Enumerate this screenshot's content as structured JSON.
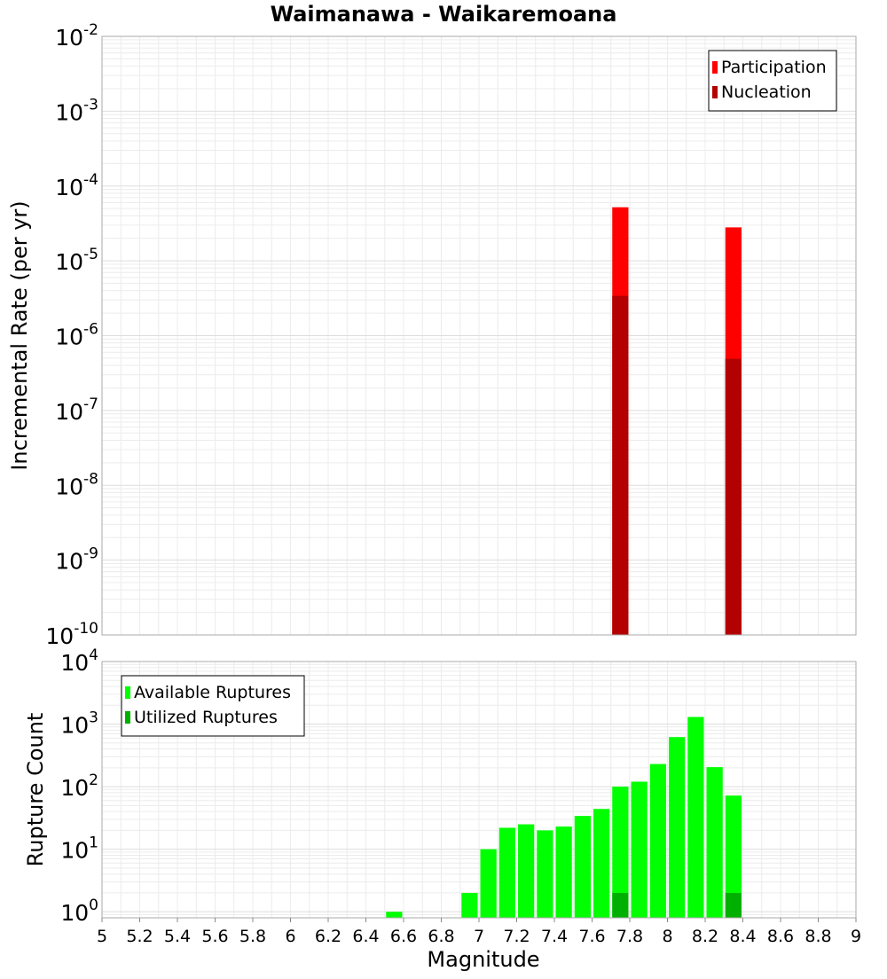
{
  "chart_data": [
    {
      "type": "bar",
      "title": "Waimanawa - Waikaremoana",
      "xlabel": "",
      "ylabel": "Incremental Rate (per yr)",
      "yscale": "log",
      "ylim": [
        1e-10,
        0.01
      ],
      "xlim": [
        5,
        9
      ],
      "y_ticks": [
        {
          "base": "10",
          "exp": "-10"
        },
        {
          "base": "10",
          "exp": "-9"
        },
        {
          "base": "10",
          "exp": "-8"
        },
        {
          "base": "10",
          "exp": "-7"
        },
        {
          "base": "10",
          "exp": "-6"
        },
        {
          "base": "10",
          "exp": "-5"
        },
        {
          "base": "10",
          "exp": "-4"
        },
        {
          "base": "10",
          "exp": "-3"
        },
        {
          "base": "10",
          "exp": "-2"
        }
      ],
      "grid": true,
      "legend_position": "top-right",
      "series": [
        {
          "name": "Participation",
          "color": "#ff0000",
          "x": [
            7.75,
            8.35
          ],
          "values": [
            5.2e-05,
            2.8e-05
          ]
        },
        {
          "name": "Nucleation",
          "color": "#b30000",
          "x": [
            7.75,
            8.35
          ],
          "values": [
            3.4e-06,
            4.9e-07
          ]
        }
      ]
    },
    {
      "type": "bar",
      "title": "",
      "xlabel": "Magnitude",
      "ylabel": "Rupture Count",
      "yscale": "log",
      "ylim": [
        0.8,
        10000
      ],
      "xlim": [
        5,
        9
      ],
      "y_ticks": [
        {
          "base": "10",
          "exp": "0"
        },
        {
          "base": "10",
          "exp": "1"
        },
        {
          "base": "10",
          "exp": "2"
        },
        {
          "base": "10",
          "exp": "3"
        },
        {
          "base": "10",
          "exp": "4"
        }
      ],
      "x_ticks": [
        "5",
        "5.2",
        "5.4",
        "5.6",
        "5.8",
        "6",
        "6.2",
        "6.4",
        "6.6",
        "6.8",
        "7",
        "7.2",
        "7.4",
        "7.6",
        "7.8",
        "8",
        "8.2",
        "8.4",
        "8.6",
        "8.8",
        "9"
      ],
      "grid": true,
      "legend_position": "top-left",
      "series": [
        {
          "name": "Available Ruptures",
          "color": "#00ff00",
          "x": [
            6.55,
            6.95,
            7.05,
            7.15,
            7.25,
            7.35,
            7.45,
            7.55,
            7.65,
            7.75,
            7.85,
            7.95,
            8.05,
            8.15,
            8.25,
            8.35
          ],
          "values": [
            1,
            2,
            10,
            22,
            25,
            20,
            23,
            34,
            44,
            100,
            120,
            230,
            620,
            1300,
            205,
            72
          ]
        },
        {
          "name": "Utilized Ruptures",
          "color": "#00b000",
          "x": [
            7.75,
            8.35
          ],
          "values": [
            2,
            2
          ]
        }
      ]
    }
  ]
}
